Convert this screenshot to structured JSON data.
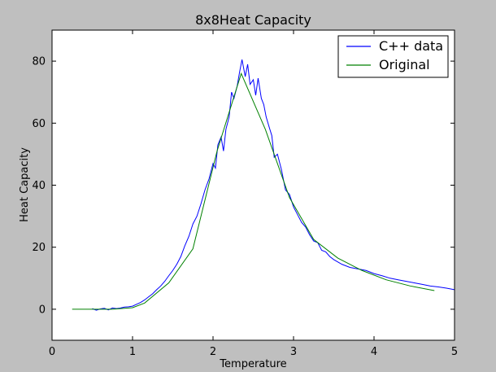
{
  "chart_data": {
    "type": "line",
    "title": "8x8Heat Capacity",
    "xlabel": "Temperature",
    "ylabel": "Heat Capacity",
    "xlim": [
      0,
      5
    ],
    "ylim": [
      -10,
      90
    ],
    "xticks": [
      0,
      1,
      2,
      3,
      4,
      5
    ],
    "yticks": [
      0,
      20,
      40,
      60,
      80
    ],
    "grid": false,
    "legend_position": "top-right",
    "series": [
      {
        "name": "C++ data",
        "color": "#0000ff",
        "x": [
          0.5,
          0.55,
          0.6,
          0.65,
          0.7,
          0.75,
          0.8,
          0.85,
          0.9,
          0.95,
          1.0,
          1.05,
          1.1,
          1.15,
          1.2,
          1.25,
          1.3,
          1.35,
          1.4,
          1.45,
          1.5,
          1.55,
          1.6,
          1.65,
          1.7,
          1.75,
          1.8,
          1.85,
          1.9,
          1.95,
          2.0,
          2.03,
          2.06,
          2.1,
          2.13,
          2.16,
          2.2,
          2.23,
          2.26,
          2.3,
          2.33,
          2.36,
          2.4,
          2.43,
          2.46,
          2.5,
          2.53,
          2.56,
          2.6,
          2.63,
          2.66,
          2.7,
          2.73,
          2.76,
          2.8,
          2.85,
          2.9,
          2.95,
          3.0,
          3.05,
          3.1,
          3.15,
          3.2,
          3.25,
          3.3,
          3.35,
          3.4,
          3.45,
          3.5,
          3.6,
          3.7,
          3.8,
          3.9,
          4.0,
          4.1,
          4.2,
          4.3,
          4.4,
          4.5,
          4.6,
          4.7,
          4.8,
          4.9,
          5.0
        ],
        "y": [
          0.2,
          -0.3,
          0.1,
          0.3,
          -0.2,
          0.4,
          0.2,
          0.4,
          0.7,
          0.8,
          1.0,
          1.6,
          2.2,
          3.0,
          4.0,
          5.0,
          6.3,
          7.5,
          9.0,
          10.8,
          12.5,
          14.5,
          17.0,
          20.5,
          23.5,
          27.5,
          30.0,
          34.0,
          38.5,
          42.0,
          47.0,
          45.5,
          53.0,
          55.5,
          51.0,
          58.0,
          62.0,
          70.0,
          68.0,
          72.0,
          76.5,
          80.5,
          75.0,
          79.0,
          72.5,
          74.0,
          69.0,
          74.5,
          68.0,
          66.0,
          62.0,
          58.5,
          56.0,
          49.0,
          50.0,
          45.0,
          38.5,
          37.0,
          33.0,
          30.5,
          28.0,
          26.5,
          24.0,
          22.0,
          21.5,
          19.0,
          18.5,
          17.0,
          16.0,
          14.5,
          13.5,
          13.0,
          12.5,
          11.5,
          10.8,
          10.0,
          9.5,
          9.0,
          8.5,
          8.0,
          7.5,
          7.2,
          6.8,
          6.3
        ]
      },
      {
        "name": "Original",
        "color": "#008000",
        "x": [
          0.25,
          0.5,
          0.75,
          1.0,
          1.15,
          1.45,
          1.75,
          2.05,
          2.35,
          2.65,
          2.95,
          3.25,
          3.55,
          3.85,
          4.15,
          4.45,
          4.75
        ],
        "y": [
          0,
          0,
          0,
          0.5,
          2,
          8.5,
          19.5,
          51,
          76,
          58,
          36,
          22.5,
          16.5,
          12.5,
          9.5,
          7.5,
          6.0
        ]
      }
    ]
  }
}
